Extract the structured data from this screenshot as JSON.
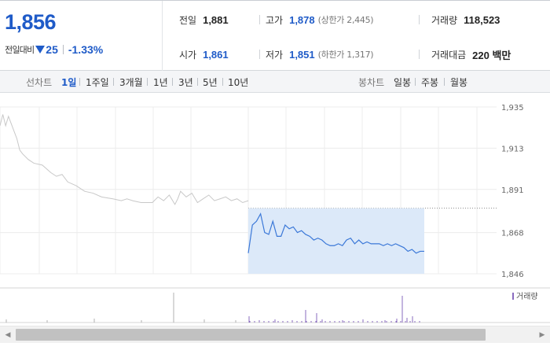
{
  "quote": {
    "current_price": "1,856",
    "change_label": "전일대비",
    "change_value": "25",
    "change_direction": "down",
    "change_rate": "-1.33%",
    "stats": {
      "prev_close": {
        "label": "전일",
        "value": "1,881"
      },
      "open": {
        "label": "시가",
        "value": "1,861"
      },
      "high": {
        "label": "고가",
        "value": "1,878",
        "sub": "(상한가 2,445)"
      },
      "low": {
        "label": "저가",
        "value": "1,851",
        "sub": "(하한가 1,317)"
      },
      "volume": {
        "label": "거래량",
        "value": "118,523"
      },
      "trade_value": {
        "label": "거래대금",
        "value": "220 백만"
      }
    }
  },
  "period_bar": {
    "line_chart_label": "선차트",
    "line_periods": [
      "1일",
      "1주일",
      "3개월",
      "1년",
      "3년",
      "5년",
      "10년"
    ],
    "active_period": "1일",
    "candle_chart_label": "봉차트",
    "candle_periods": [
      "일봉",
      "주봉",
      "월봉"
    ]
  },
  "chart_data": {
    "type": "line",
    "y_ticks": [
      "1,935",
      "1,913",
      "1,891",
      "1,868",
      "1,846"
    ],
    "ylim": [
      1846,
      1935
    ],
    "prev_close_line": 1881,
    "volume_legend": "거래량",
    "colors": {
      "prev_day_line": "#c8c8c8",
      "today_line": "#3b78d8",
      "today_fill": "#dce9f9",
      "volume_bar": "#8a6bbf",
      "prev_volume_bar": "#b0b0b0"
    },
    "previous_session": [
      [
        0,
        1925
      ],
      [
        1,
        1931
      ],
      [
        2,
        1925
      ],
      [
        3,
        1930
      ],
      [
        4,
        1926
      ],
      [
        6,
        1918
      ],
      [
        7,
        1912
      ],
      [
        8,
        1910
      ],
      [
        10,
        1907
      ],
      [
        12,
        1905
      ],
      [
        15,
        1904
      ],
      [
        18,
        1900
      ],
      [
        20,
        1898
      ],
      [
        22,
        1899
      ],
      [
        24,
        1895
      ],
      [
        27,
        1893
      ],
      [
        30,
        1890
      ],
      [
        33,
        1889
      ],
      [
        36,
        1887
      ],
      [
        40,
        1886
      ],
      [
        43,
        1885
      ],
      [
        45,
        1886
      ],
      [
        47,
        1885
      ],
      [
        50,
        1884
      ],
      [
        54,
        1884
      ],
      [
        56,
        1887
      ],
      [
        58,
        1885
      ],
      [
        60,
        1888
      ],
      [
        62,
        1883
      ],
      [
        63,
        1886
      ],
      [
        64,
        1890
      ],
      [
        66,
        1887
      ],
      [
        68,
        1889
      ],
      [
        70,
        1884
      ],
      [
        72,
        1886
      ],
      [
        74,
        1888
      ],
      [
        76,
        1885
      ],
      [
        78,
        1886
      ],
      [
        80,
        1887
      ],
      [
        82,
        1885
      ],
      [
        84,
        1886
      ],
      [
        86,
        1884
      ],
      [
        88,
        1885
      ]
    ],
    "current_session": [
      [
        0,
        1857
      ],
      [
        1,
        1872
      ],
      [
        2,
        1874
      ],
      [
        3,
        1878
      ],
      [
        4,
        1868
      ],
      [
        5,
        1867
      ],
      [
        6,
        1874
      ],
      [
        7,
        1866
      ],
      [
        8,
        1866
      ],
      [
        9,
        1872
      ],
      [
        10,
        1870
      ],
      [
        11,
        1871
      ],
      [
        12,
        1868
      ],
      [
        13,
        1869
      ],
      [
        14,
        1867
      ],
      [
        15,
        1866
      ],
      [
        16,
        1864
      ],
      [
        17,
        1865
      ],
      [
        18,
        1864
      ],
      [
        19,
        1862
      ],
      [
        20,
        1861
      ],
      [
        21,
        1861
      ],
      [
        22,
        1862
      ],
      [
        23,
        1861
      ],
      [
        24,
        1864
      ],
      [
        25,
        1865
      ],
      [
        26,
        1862
      ],
      [
        27,
        1864
      ],
      [
        28,
        1862
      ],
      [
        29,
        1863
      ],
      [
        30,
        1862
      ],
      [
        31,
        1862
      ],
      [
        32,
        1862
      ],
      [
        33,
        1861
      ],
      [
        34,
        1862
      ],
      [
        35,
        1861
      ],
      [
        36,
        1862
      ],
      [
        37,
        1861
      ],
      [
        38,
        1860
      ],
      [
        39,
        1858
      ],
      [
        40,
        1859
      ],
      [
        41,
        1857
      ],
      [
        42,
        1858
      ],
      [
        43,
        1858
      ]
    ]
  },
  "scrollbar": {
    "left_arrow": "◀",
    "right_arrow": "▶"
  }
}
